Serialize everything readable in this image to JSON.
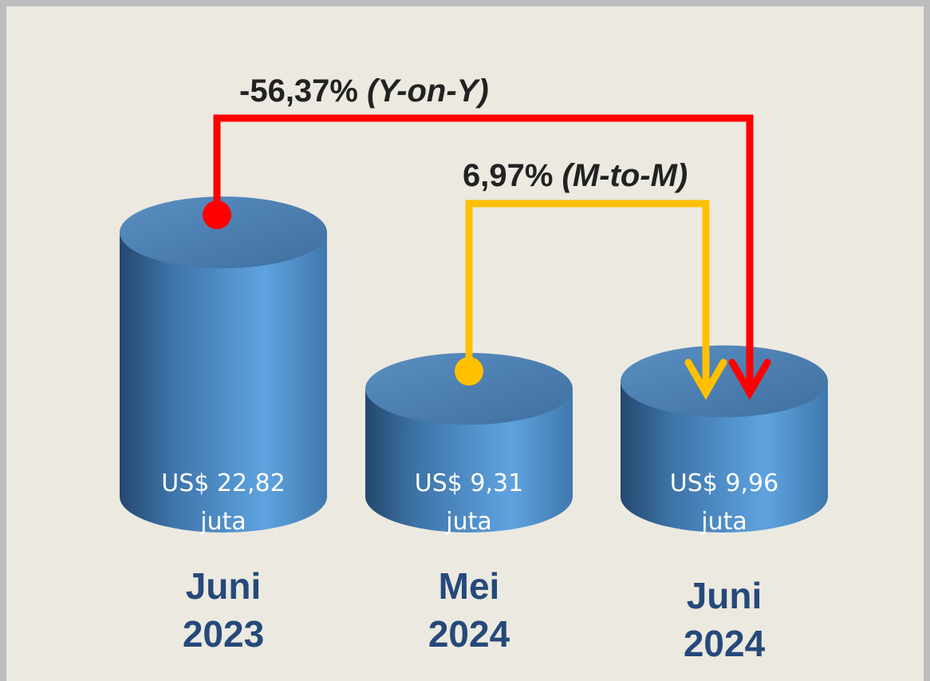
{
  "chart_data": {
    "type": "cylinder",
    "categories": [
      "Juni 2023",
      "Mei 2024",
      "Juni 2024"
    ],
    "values": [
      22.82,
      9.31,
      9.96
    ],
    "value_labels": [
      "US$ 22,82 juta",
      "US$ 9,31 juta",
      "US$ 9,96 juta"
    ],
    "color": "#4f8fcc",
    "annotations": [
      {
        "text": "-56,37%",
        "period": "(Y-on-Y)",
        "color": "#ff0000"
      },
      {
        "text": "6,97%",
        "period": "(M-to-M)",
        "color": "#ffc000"
      }
    ]
  }
}
